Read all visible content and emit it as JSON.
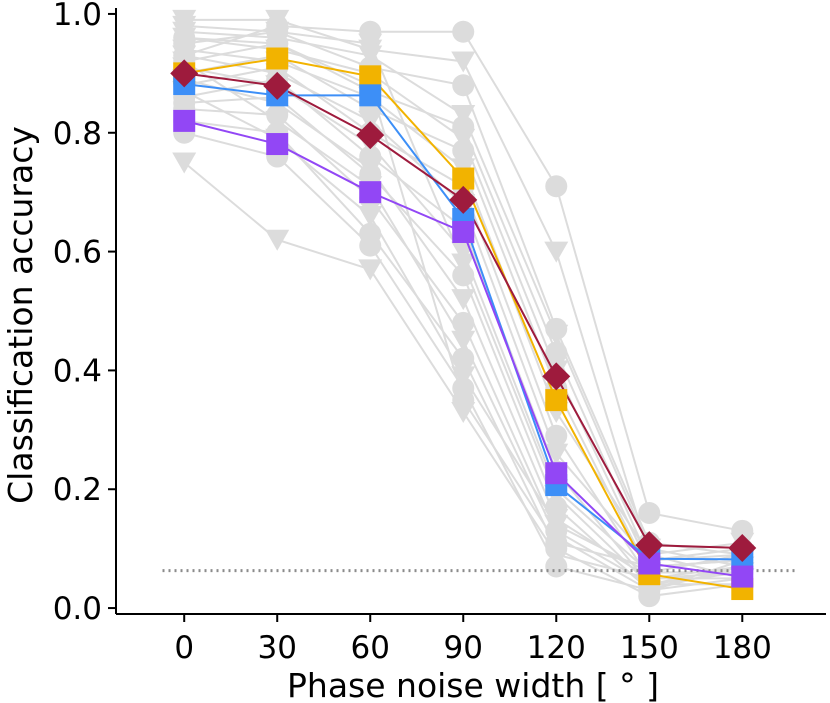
{
  "chart_data": {
    "type": "line",
    "title": "",
    "xlabel": "Phase noise width [$^\\circ$]",
    "xlabel_text": "Phase noise width [ ° ]",
    "ylabel": "Classification accuracy",
    "x": [
      0,
      30,
      60,
      90,
      120,
      150,
      180
    ],
    "x_tick_labels": [
      "0",
      "30",
      "60",
      "90",
      "120",
      "150",
      "180"
    ],
    "y_ticks": [
      0.0,
      0.2,
      0.4,
      0.6,
      0.8,
      1.0
    ],
    "y_tick_labels": [
      "0.0",
      "0.2",
      "0.4",
      "0.6",
      "0.8",
      "1.0"
    ],
    "xlim": [
      -22,
      207
    ],
    "ylim": [
      -0.01,
      1.01
    ],
    "chance_level": 0.063,
    "colors": {
      "background_series": "#dcdcdc",
      "chance_line": "#8c8c8c",
      "axis": "#000000"
    },
    "background_series": [
      {
        "marker": "circle",
        "values": [
          0.93,
          0.98,
          0.97,
          0.97,
          0.71,
          0.16,
          0.13
        ]
      },
      {
        "marker": "triangle",
        "values": [
          0.99,
          0.99,
          0.94,
          0.92,
          0.6,
          0.09,
          0.11
        ]
      },
      {
        "marker": "circle",
        "values": [
          0.95,
          0.97,
          0.91,
          0.88,
          0.47,
          0.11,
          0.09
        ]
      },
      {
        "marker": "triangle",
        "values": [
          0.97,
          0.96,
          0.93,
          0.83,
          0.46,
          0.1,
          0.07
        ]
      },
      {
        "marker": "circle",
        "values": [
          0.92,
          0.95,
          0.87,
          0.81,
          0.43,
          0.08,
          0.1
        ]
      },
      {
        "marker": "triangle",
        "values": [
          0.96,
          0.94,
          0.9,
          0.79,
          0.4,
          0.07,
          0.08
        ]
      },
      {
        "marker": "circle",
        "values": [
          0.9,
          0.93,
          0.84,
          0.77,
          0.37,
          0.06,
          0.06
        ]
      },
      {
        "marker": "triangle",
        "values": [
          0.94,
          0.92,
          0.86,
          0.74,
          0.33,
          0.09,
          0.05
        ]
      },
      {
        "marker": "circle",
        "values": [
          0.88,
          0.91,
          0.8,
          0.71,
          0.29,
          0.05,
          0.07
        ]
      },
      {
        "marker": "triangle",
        "values": [
          0.93,
          0.9,
          0.82,
          0.68,
          0.26,
          0.08,
          0.09
        ]
      },
      {
        "marker": "circle",
        "values": [
          0.86,
          0.89,
          0.76,
          0.64,
          0.23,
          0.04,
          0.04
        ]
      },
      {
        "marker": "triangle",
        "values": [
          0.91,
          0.88,
          0.78,
          0.6,
          0.2,
          0.06,
          0.06
        ]
      },
      {
        "marker": "circle",
        "values": [
          0.85,
          0.86,
          0.73,
          0.56,
          0.17,
          0.03,
          0.08
        ]
      },
      {
        "marker": "triangle",
        "values": [
          0.89,
          0.85,
          0.74,
          0.52,
          0.15,
          0.05,
          0.05
        ]
      },
      {
        "marker": "circle",
        "values": [
          0.84,
          0.83,
          0.69,
          0.48,
          0.13,
          0.04,
          0.06
        ]
      },
      {
        "marker": "triangle",
        "values": [
          0.92,
          0.82,
          0.71,
          0.45,
          0.12,
          0.03,
          0.07
        ]
      },
      {
        "marker": "circle",
        "values": [
          0.82,
          0.8,
          0.63,
          0.42,
          0.1,
          0.02,
          0.04
        ]
      },
      {
        "marker": "triangle",
        "values": [
          0.87,
          0.79,
          0.66,
          0.39,
          0.14,
          0.06,
          0.09
        ]
      },
      {
        "marker": "circle",
        "values": [
          0.8,
          0.76,
          0.61,
          0.37,
          0.07,
          0.03,
          0.05
        ]
      },
      {
        "marker": "triangle",
        "values": [
          0.75,
          0.62,
          0.57,
          0.33,
          0.09,
          0.05,
          0.06
        ]
      },
      {
        "marker": "circle",
        "values": [
          0.96,
          0.95,
          0.88,
          0.35,
          0.11,
          0.07,
          0.08
        ]
      },
      {
        "marker": "triangle",
        "values": [
          0.98,
          0.97,
          0.95,
          0.58,
          0.19,
          0.04,
          0.07
        ]
      }
    ],
    "series": [
      {
        "name": "orange",
        "marker": "square",
        "color": "#f2b300",
        "values": [
          0.9,
          0.925,
          0.895,
          0.723,
          0.35,
          0.057,
          0.032
        ]
      },
      {
        "name": "blue",
        "marker": "square",
        "color": "#3d8ff7",
        "values": [
          0.882,
          0.863,
          0.863,
          0.655,
          0.207,
          0.083,
          0.082
        ]
      },
      {
        "name": "purple",
        "marker": "square",
        "color": "#9247f5",
        "values": [
          0.82,
          0.781,
          0.7,
          0.633,
          0.227,
          0.075,
          0.053
        ]
      },
      {
        "name": "crimson",
        "marker": "diamond",
        "color": "#9e1b3d",
        "values": [
          0.9,
          0.879,
          0.796,
          0.687,
          0.39,
          0.106,
          0.101
        ]
      }
    ]
  }
}
